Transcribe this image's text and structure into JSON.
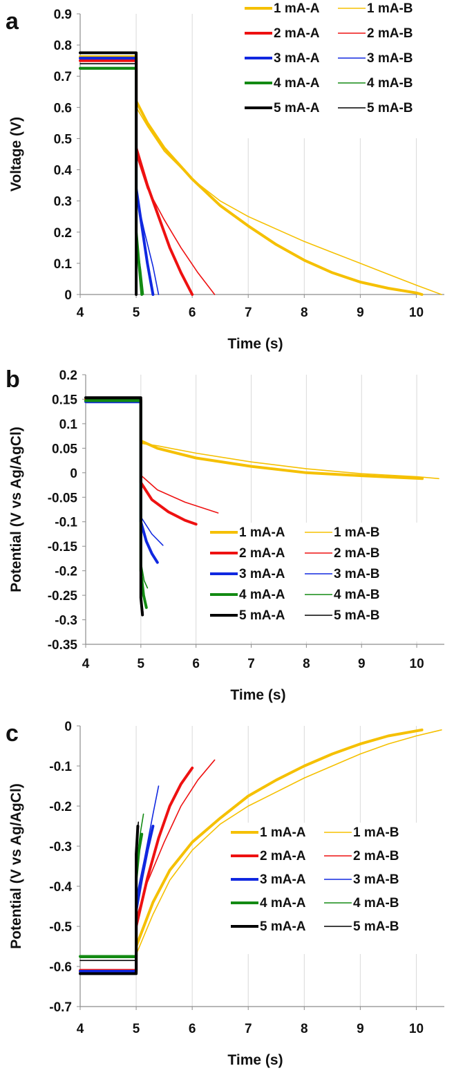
{
  "colors": {
    "1 mA": "#f5c000",
    "2 mA": "#ee1111",
    "3 mA": "#1028e0",
    "4 mA": "#138a13",
    "5 mA": "#000000"
  },
  "chart_data": [
    {
      "panel": "a",
      "type": "line",
      "xlabel": "Time (s)",
      "ylabel": "Voltage (V)",
      "xlim": [
        4,
        10.5
      ],
      "ylim": [
        0,
        0.9
      ],
      "xticks": [
        "4",
        "5",
        "6",
        "7",
        "8",
        "9",
        "10"
      ],
      "yticks": [
        "0",
        "0.1",
        "0.2",
        "0.3",
        "0.4",
        "0.5",
        "0.6",
        "0.7",
        "0.8",
        "0.9"
      ],
      "grid": "vertical",
      "legend": "top-right",
      "series": [
        {
          "name": "1 mA-A",
          "points": [
            [
              4,
              0.762
            ],
            [
              5.0,
              0.762
            ],
            [
              5.0,
              0.62
            ],
            [
              5.2,
              0.55
            ],
            [
              5.5,
              0.47
            ],
            [
              6.0,
              0.37
            ],
            [
              6.5,
              0.285
            ],
            [
              7.0,
              0.22
            ],
            [
              7.5,
              0.16
            ],
            [
              8.0,
              0.11
            ],
            [
              8.5,
              0.07
            ],
            [
              9.0,
              0.04
            ],
            [
              9.5,
              0.02
            ],
            [
              10.0,
              0.005
            ],
            [
              10.1,
              0.0
            ]
          ]
        },
        {
          "name": "1 mA-B",
          "points": [
            [
              4,
              0.765
            ],
            [
              5.0,
              0.765
            ],
            [
              5.0,
              0.6
            ],
            [
              5.2,
              0.54
            ],
            [
              5.5,
              0.46
            ],
            [
              6.0,
              0.37
            ],
            [
              6.5,
              0.3
            ],
            [
              7.0,
              0.25
            ],
            [
              7.5,
              0.21
            ],
            [
              8.0,
              0.17
            ],
            [
              8.5,
              0.135
            ],
            [
              9.0,
              0.1
            ],
            [
              9.5,
              0.065
            ],
            [
              10.0,
              0.03
            ],
            [
              10.45,
              0.0
            ]
          ]
        },
        {
          "name": "2 mA-A",
          "points": [
            [
              4,
              0.75
            ],
            [
              5.0,
              0.75
            ],
            [
              5.0,
              0.47
            ],
            [
              5.2,
              0.35
            ],
            [
              5.4,
              0.25
            ],
            [
              5.6,
              0.15
            ],
            [
              5.8,
              0.07
            ],
            [
              6.0,
              0.0
            ]
          ]
        },
        {
          "name": "2 mA-B",
          "points": [
            [
              4,
              0.752
            ],
            [
              5.0,
              0.752
            ],
            [
              5.0,
              0.45
            ],
            [
              5.2,
              0.34
            ],
            [
              5.5,
              0.24
            ],
            [
              5.8,
              0.15
            ],
            [
              6.1,
              0.07
            ],
            [
              6.4,
              0.0
            ]
          ]
        },
        {
          "name": "3 mA-A",
          "points": [
            [
              4,
              0.758
            ],
            [
              5.0,
              0.758
            ],
            [
              5.0,
              0.34
            ],
            [
              5.1,
              0.22
            ],
            [
              5.2,
              0.1
            ],
            [
              5.3,
              0.0
            ]
          ]
        },
        {
          "name": "3 mA-B",
          "points": [
            [
              4,
              0.76
            ],
            [
              5.0,
              0.76
            ],
            [
              5.0,
              0.32
            ],
            [
              5.15,
              0.2
            ],
            [
              5.3,
              0.09
            ],
            [
              5.4,
              0.0
            ]
          ]
        },
        {
          "name": "4 mA-A",
          "points": [
            [
              4,
              0.725
            ],
            [
              5.0,
              0.725
            ],
            [
              5.0,
              0.2
            ],
            [
              5.05,
              0.1
            ],
            [
              5.1,
              0.0
            ]
          ]
        },
        {
          "name": "4 mA-B",
          "points": [
            [
              4,
              0.728
            ],
            [
              5.0,
              0.728
            ],
            [
              5.0,
              0.18
            ],
            [
              5.08,
              0.08
            ],
            [
              5.13,
              0.0
            ]
          ]
        },
        {
          "name": "5 mA-A",
          "points": [
            [
              4,
              0.775
            ],
            [
              5.0,
              0.775
            ],
            [
              5.0,
              0.0
            ]
          ]
        },
        {
          "name": "5 mA-B",
          "points": [
            [
              4,
              0.74
            ],
            [
              5.0,
              0.74
            ],
            [
              5.0,
              0.0
            ]
          ]
        }
      ]
    },
    {
      "panel": "b",
      "type": "line",
      "xlabel": "Time (s)",
      "ylabel": "Potential (V vs Ag/AgCl)",
      "xlim": [
        4,
        10.5
      ],
      "ylim": [
        -0.35,
        0.2
      ],
      "xticks": [
        "4",
        "5",
        "6",
        "7",
        "8",
        "9",
        "10"
      ],
      "yticks": [
        "-0.35",
        "-0.3",
        "-0.25",
        "-0.2",
        "-0.15",
        "-0.1",
        "-0.05",
        "0",
        "0.05",
        "0.1",
        "0.15",
        "0.2"
      ],
      "grid": "vertical",
      "legend": "bottom-right",
      "series": [
        {
          "name": "1 mA-A",
          "points": [
            [
              4,
              0.15
            ],
            [
              5.0,
              0.15
            ],
            [
              5.0,
              0.065
            ],
            [
              5.3,
              0.05
            ],
            [
              6.0,
              0.03
            ],
            [
              7.0,
              0.013
            ],
            [
              8.0,
              0.0
            ],
            [
              9.0,
              -0.006
            ],
            [
              10.1,
              -0.012
            ]
          ]
        },
        {
          "name": "1 mA-B",
          "points": [
            [
              4,
              0.148
            ],
            [
              5.0,
              0.148
            ],
            [
              5.0,
              0.06
            ],
            [
              5.3,
              0.055
            ],
            [
              6.0,
              0.04
            ],
            [
              7.0,
              0.022
            ],
            [
              8.0,
              0.008
            ],
            [
              9.0,
              -0.002
            ],
            [
              10.0,
              -0.008
            ],
            [
              10.4,
              -0.012
            ]
          ]
        },
        {
          "name": "2 mA-A",
          "points": [
            [
              4,
              0.148
            ],
            [
              5.0,
              0.148
            ],
            [
              5.0,
              -0.02
            ],
            [
              5.2,
              -0.055
            ],
            [
              5.5,
              -0.08
            ],
            [
              5.8,
              -0.097
            ],
            [
              6.0,
              -0.105
            ]
          ]
        },
        {
          "name": "2 mA-B",
          "points": [
            [
              4,
              0.147
            ],
            [
              5.0,
              0.147
            ],
            [
              5.0,
              -0.005
            ],
            [
              5.3,
              -0.035
            ],
            [
              5.8,
              -0.06
            ],
            [
              6.4,
              -0.082
            ]
          ]
        },
        {
          "name": "3 mA-A",
          "points": [
            [
              4,
              0.145
            ],
            [
              5.0,
              0.145
            ],
            [
              5.0,
              -0.1
            ],
            [
              5.1,
              -0.14
            ],
            [
              5.2,
              -0.165
            ],
            [
              5.3,
              -0.183
            ]
          ]
        },
        {
          "name": "3 mA-B",
          "points": [
            [
              4,
              0.143
            ],
            [
              5.0,
              0.143
            ],
            [
              5.0,
              -0.09
            ],
            [
              5.2,
              -0.125
            ],
            [
              5.4,
              -0.148
            ]
          ]
        },
        {
          "name": "4 mA-A",
          "points": [
            [
              4,
              0.147
            ],
            [
              5.0,
              0.147
            ],
            [
              5.0,
              -0.2
            ],
            [
              5.05,
              -0.25
            ],
            [
              5.1,
              -0.275
            ]
          ]
        },
        {
          "name": "4 mA-B",
          "points": [
            [
              4,
              0.149
            ],
            [
              5.0,
              0.149
            ],
            [
              5.0,
              -0.18
            ],
            [
              5.06,
              -0.22
            ],
            [
              5.12,
              -0.235
            ]
          ]
        },
        {
          "name": "5 mA-A",
          "points": [
            [
              4,
              0.153
            ],
            [
              5.0,
              0.153
            ],
            [
              5.0,
              -0.255
            ],
            [
              5.03,
              -0.29
            ]
          ]
        },
        {
          "name": "5 mA-B",
          "points": [
            [
              4,
              0.151
            ],
            [
              5.0,
              0.151
            ],
            [
              5.0,
              -0.25
            ],
            [
              5.04,
              -0.285
            ]
          ]
        }
      ]
    },
    {
      "panel": "c",
      "type": "line",
      "xlabel": "Time (s)",
      "ylabel": "Potential (V vs Ag/AgCl)",
      "xlim": [
        4,
        10.5
      ],
      "ylim": [
        -0.7,
        0
      ],
      "xticks": [
        "4",
        "5",
        "6",
        "7",
        "8",
        "9",
        "10"
      ],
      "yticks": [
        "-0.7",
        "-0.6",
        "-0.5",
        "-0.4",
        "-0.3",
        "-0.2",
        "-0.1",
        "0"
      ],
      "grid": "vertical",
      "legend": "bottom-right",
      "series": [
        {
          "name": "1 mA-A",
          "points": [
            [
              4,
              -0.615
            ],
            [
              5.0,
              -0.615
            ],
            [
              5.0,
              -0.55
            ],
            [
              5.3,
              -0.44
            ],
            [
              5.6,
              -0.36
            ],
            [
              6.0,
              -0.29
            ],
            [
              6.5,
              -0.23
            ],
            [
              7.0,
              -0.175
            ],
            [
              7.5,
              -0.135
            ],
            [
              8.0,
              -0.1
            ],
            [
              8.5,
              -0.07
            ],
            [
              9.0,
              -0.045
            ],
            [
              9.5,
              -0.025
            ],
            [
              10.1,
              -0.01
            ]
          ]
        },
        {
          "name": "1 mA-B",
          "points": [
            [
              4,
              -0.612
            ],
            [
              5.0,
              -0.612
            ],
            [
              5.0,
              -0.57
            ],
            [
              5.3,
              -0.47
            ],
            [
              5.6,
              -0.385
            ],
            [
              6.0,
              -0.31
            ],
            [
              6.5,
              -0.245
            ],
            [
              7.0,
              -0.2
            ],
            [
              7.5,
              -0.165
            ],
            [
              8.0,
              -0.13
            ],
            [
              8.5,
              -0.1
            ],
            [
              9.0,
              -0.07
            ],
            [
              9.5,
              -0.045
            ],
            [
              10.0,
              -0.025
            ],
            [
              10.45,
              -0.01
            ]
          ]
        },
        {
          "name": "2 mA-A",
          "points": [
            [
              4,
              -0.61
            ],
            [
              5.0,
              -0.61
            ],
            [
              5.0,
              -0.5
            ],
            [
              5.2,
              -0.38
            ],
            [
              5.4,
              -0.28
            ],
            [
              5.6,
              -0.2
            ],
            [
              5.8,
              -0.145
            ],
            [
              6.0,
              -0.105
            ]
          ]
        },
        {
          "name": "2 mA-B",
          "points": [
            [
              4,
              -0.608
            ],
            [
              5.0,
              -0.608
            ],
            [
              5.0,
              -0.48
            ],
            [
              5.2,
              -0.39
            ],
            [
              5.5,
              -0.29
            ],
            [
              5.8,
              -0.2
            ],
            [
              6.1,
              -0.135
            ],
            [
              6.4,
              -0.085
            ]
          ]
        },
        {
          "name": "3 mA-A",
          "points": [
            [
              4,
              -0.612
            ],
            [
              5.0,
              -0.612
            ],
            [
              5.0,
              -0.46
            ],
            [
              5.1,
              -0.38
            ],
            [
              5.2,
              -0.31
            ],
            [
              5.3,
              -0.25
            ]
          ]
        },
        {
          "name": "3 mA-B",
          "points": [
            [
              4,
              -0.61
            ],
            [
              5.0,
              -0.61
            ],
            [
              5.0,
              -0.43
            ],
            [
              5.15,
              -0.33
            ],
            [
              5.3,
              -0.22
            ],
            [
              5.4,
              -0.15
            ]
          ]
        },
        {
          "name": "4 mA-A",
          "points": [
            [
              4,
              -0.575
            ],
            [
              5.0,
              -0.575
            ],
            [
              5.0,
              -0.38
            ],
            [
              5.05,
              -0.31
            ],
            [
              5.1,
              -0.27
            ]
          ]
        },
        {
          "name": "4 mA-B",
          "points": [
            [
              4,
              -0.578
            ],
            [
              5.0,
              -0.578
            ],
            [
              5.0,
              -0.35
            ],
            [
              5.07,
              -0.27
            ],
            [
              5.13,
              -0.22
            ]
          ]
        },
        {
          "name": "5 mA-A",
          "points": [
            [
              4,
              -0.618
            ],
            [
              5.0,
              -0.618
            ],
            [
              5.0,
              -0.32
            ],
            [
              5.03,
              -0.25
            ]
          ]
        },
        {
          "name": "5 mA-B",
          "points": [
            [
              4,
              -0.585
            ],
            [
              5.0,
              -0.585
            ],
            [
              5.0,
              -0.3
            ],
            [
              5.04,
              -0.24
            ]
          ]
        }
      ]
    }
  ],
  "panels": {
    "a": {
      "label": "a"
    },
    "b": {
      "label": "b"
    },
    "c": {
      "label": "c"
    }
  },
  "legend_labels": [
    "1 mA-A",
    "1 mA-B",
    "2 mA-A",
    "2 mA-B",
    "3 mA-A",
    "3 mA-B",
    "4 mA-A",
    "4 mA-B",
    "5 mA-A",
    "5 mA-B"
  ]
}
